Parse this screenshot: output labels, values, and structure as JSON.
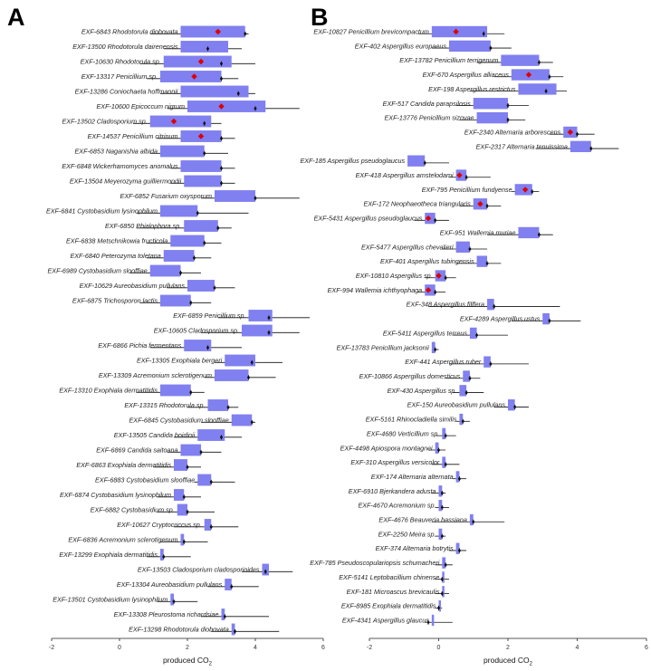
{
  "chart_data": [
    {
      "type": "range-box",
      "panel_label": "A",
      "xlabel": "produced CO",
      "xlabel_subscript": "2",
      "xlim": [
        -2,
        6
      ],
      "xticks": [
        "-2",
        "0",
        "2",
        "4",
        "6"
      ],
      "rows": [
        {
          "label": "EXF-6843 Rhodotorula diobovata",
          "lo": 1.8,
          "hi": 3.7,
          "w0": 0.9,
          "w1": 3.8,
          "m": 3.7,
          "star": 2.9
        },
        {
          "label": "EXF-13500 Rhodotorula dairenensis",
          "lo": 1.8,
          "hi": 3.2,
          "w0": 1.3,
          "w1": 3.6,
          "m": 2.6,
          "star": null
        },
        {
          "label": "EXF-10630 Rhodotorula sp.",
          "lo": 1.3,
          "hi": 3.3,
          "w0": 0.6,
          "w1": 4.0,
          "m": 3.0,
          "star": 2.4
        },
        {
          "label": "EXF-13317 Penicillium sp.",
          "lo": 1.2,
          "hi": 3.0,
          "w0": 0.8,
          "w1": 3.5,
          "m": 3.0,
          "star": 2.2
        },
        {
          "label": "EXF-13286 Coniochaeta hoffmannii",
          "lo": 1.8,
          "hi": 3.8,
          "w0": 1.2,
          "w1": 4.0,
          "m": 3.5,
          "star": null
        },
        {
          "label": "EXF-10600 Epicoccum nigrum",
          "lo": 2.0,
          "hi": 4.3,
          "w0": 1.4,
          "w1": 5.3,
          "m": 4.0,
          "star": 3.0
        },
        {
          "label": "EXF-13502 Cladosporium sp.",
          "lo": 0.9,
          "hi": 2.7,
          "w0": 0.4,
          "w1": 3.0,
          "m": 2.5,
          "star": 1.6
        },
        {
          "label": "EXF-14537 Penicillium citrinum",
          "lo": 1.8,
          "hi": 3.0,
          "w0": 1.1,
          "w1": 3.4,
          "m": 3.0,
          "star": 2.4
        },
        {
          "label": "EXF-6853 Naganishia albida",
          "lo": 1.2,
          "hi": 2.5,
          "w0": 0.9,
          "w1": 3.2,
          "m": 2.5,
          "star": null
        },
        {
          "label": "EXF-6848 Wickerhamomyces anomalus",
          "lo": 1.8,
          "hi": 3.0,
          "w0": 1.5,
          "w1": 3.4,
          "m": 3.0,
          "star": null
        },
        {
          "label": "EXF-13504 Meyerozyma guilliermondii",
          "lo": 1.9,
          "hi": 3.0,
          "w0": 1.5,
          "w1": 3.4,
          "m": 3.0,
          "star": null
        },
        {
          "label": "EXF-6852 Fusarium oxysporum",
          "lo": 2.8,
          "hi": 4.0,
          "w0": 2.4,
          "w1": 5.3,
          "m": 4.0,
          "star": null
        },
        {
          "label": "EXF-6841 Cystobasidium lysinophilum",
          "lo": 1.2,
          "hi": 2.3,
          "w0": 0.5,
          "w1": 3.8,
          "m": 2.3,
          "star": null
        },
        {
          "label": "EXF-6850 Phialophora sp.",
          "lo": 1.9,
          "hi": 2.9,
          "w0": 0.5,
          "w1": 3.3,
          "m": 2.9,
          "star": null
        },
        {
          "label": "EXF-6838 Metschnikowia fructicola",
          "lo": 1.5,
          "hi": 2.5,
          "w0": 0.8,
          "w1": 3.0,
          "m": 2.5,
          "star": null
        },
        {
          "label": "EXF-6840 Peterozyma toletana",
          "lo": 1.3,
          "hi": 2.2,
          "w0": 0.8,
          "w1": 2.7,
          "m": 2.2,
          "star": null
        },
        {
          "label": "EXF-6989 Cystobasidium slooffiae",
          "lo": 0.9,
          "hi": 1.8,
          "w0": 0.3,
          "w1": 2.4,
          "m": 1.8,
          "star": null
        },
        {
          "label": "EXF-10629 Aureobasidium pullulans",
          "lo": 2.0,
          "hi": 2.8,
          "w0": 1.4,
          "w1": 3.4,
          "m": 2.8,
          "star": null
        },
        {
          "label": "EXF-6875 Trichosporon lactis",
          "lo": 1.2,
          "hi": 2.1,
          "w0": 0.6,
          "w1": 2.7,
          "m": 2.1,
          "star": null
        },
        {
          "label": "EXF-6859 Penicillium sp.",
          "lo": 3.8,
          "hi": 4.5,
          "w0": 2.9,
          "w1": 5.6,
          "m": 4.4,
          "star": null
        },
        {
          "label": "EXF-10605 Cladosporium sp.",
          "lo": 3.6,
          "hi": 4.5,
          "w0": 2.4,
          "w1": 5.3,
          "m": 4.4,
          "star": null
        },
        {
          "label": "EXF-6866 Pichia fermentans",
          "lo": 1.9,
          "hi": 2.7,
          "w0": 0.9,
          "w1": 3.6,
          "m": 2.6,
          "star": null
        },
        {
          "label": "EXF-13305 Exophiala bergeri",
          "lo": 3.1,
          "hi": 4.0,
          "w0": 2.8,
          "w1": 4.8,
          "m": 3.9,
          "star": null
        },
        {
          "label": "EXF-13309 Acremonium sclerotigenum",
          "lo": 2.8,
          "hi": 3.8,
          "w0": 2.5,
          "w1": 4.6,
          "m": 3.8,
          "star": null
        },
        {
          "label": "EXF-13310 Exophiala dermatitidis",
          "lo": 1.2,
          "hi": 2.1,
          "w0": 0.5,
          "w1": 2.5,
          "m": 2.1,
          "star": null
        },
        {
          "label": "EXF-13315 Rhodotorula sp.",
          "lo": 2.6,
          "hi": 3.2,
          "w0": 2.0,
          "w1": 3.5,
          "m": 3.2,
          "star": null
        },
        {
          "label": "EXF-6845 Cystobasidium slooffiae",
          "lo": 3.3,
          "hi": 3.9,
          "w0": 2.4,
          "w1": 4.0,
          "m": 3.9,
          "star": null
        },
        {
          "label": "EXF-13505 Candida boidinii",
          "lo": 2.3,
          "hi": 3.1,
          "w0": 1.6,
          "w1": 3.6,
          "m": 3.0,
          "star": null
        },
        {
          "label": "EXF-6869 Candida saitoana",
          "lo": 1.8,
          "hi": 2.4,
          "w0": 1.4,
          "w1": 3.0,
          "m": 2.4,
          "star": null
        },
        {
          "label": "EXF-6863 Exophiala dermatitidis",
          "lo": 1.6,
          "hi": 2.0,
          "w0": 1.0,
          "w1": 2.4,
          "m": 2.0,
          "star": null
        },
        {
          "label": "EXF-6883 Cystobasidium slooffiae",
          "lo": 2.3,
          "hi": 2.7,
          "w0": 2.2,
          "w1": 3.4,
          "m": 2.7,
          "star": null
        },
        {
          "label": "EXF-6874 Cystobasidium lysinophilum",
          "lo": 1.6,
          "hi": 1.9,
          "w0": 1.1,
          "w1": 2.4,
          "m": 1.9,
          "star": null
        },
        {
          "label": "EXF-6882 Cystobasidium sp.",
          "lo": 1.7,
          "hi": 2.0,
          "w0": 1.1,
          "w1": 2.8,
          "m": 2.0,
          "star": null
        },
        {
          "label": "EXF-10627 Cryptococcus sp.",
          "lo": 2.5,
          "hi": 2.7,
          "w0": 1.6,
          "w1": 3.5,
          "m": 2.7,
          "star": null
        },
        {
          "label": "EXF-6836 Acremonium sclerotigenum",
          "lo": 1.8,
          "hi": 1.9,
          "w0": 1.2,
          "w1": 2.6,
          "m": 1.9,
          "star": null
        },
        {
          "label": "EXF-13299 Exophiala dermatitidis",
          "lo": 1.2,
          "hi": 1.3,
          "w0": 0.8,
          "w1": 2.1,
          "m": 1.3,
          "star": null
        },
        {
          "label": "EXF-13503 Cladosporium cladosporioides",
          "lo": 4.2,
          "hi": 4.4,
          "w0": 3.6,
          "w1": 5.1,
          "m": 4.3,
          "star": null
        },
        {
          "label": "EXF-13304 Aureobasidium pullulans",
          "lo": 3.1,
          "hi": 3.3,
          "w0": 2.6,
          "w1": 4.1,
          "m": 3.3,
          "star": null
        },
        {
          "label": "EXF-13501 Cystobasidium lysinophilum",
          "lo": 1.5,
          "hi": 1.6,
          "w0": 1.1,
          "w1": 2.3,
          "m": 1.6,
          "star": null
        },
        {
          "label": "EXF-13308 Pleurostoma richardsiae",
          "lo": 3.0,
          "hi": 3.1,
          "w0": 2.4,
          "w1": 4.4,
          "m": 3.1,
          "star": null
        },
        {
          "label": "EXF-13298 Rhodotorula diobovata",
          "lo": 3.3,
          "hi": 3.4,
          "w0": 2.7,
          "w1": 4.7,
          "m": 3.4,
          "star": null
        }
      ]
    },
    {
      "type": "range-box",
      "panel_label": "B",
      "xlabel": "produced CO",
      "xlabel_subscript": "2",
      "xlim": [
        -2,
        6
      ],
      "xticks": [
        "-2",
        "0",
        "2",
        "4",
        "6"
      ],
      "rows": [
        {
          "label": "EXF-10827 Penicillium brevicompactum",
          "lo": -0.2,
          "hi": 1.4,
          "w0": -0.6,
          "w1": 1.9,
          "m": 1.3,
          "star": 0.5
        },
        {
          "label": "EXF-402 Aspergillus europaeus",
          "lo": 0.3,
          "hi": 1.5,
          "w0": -0.2,
          "w1": 2.1,
          "m": 1.5,
          "star": null
        },
        {
          "label": "EXF-13782 Penicillium terrigenum",
          "lo": 1.8,
          "hi": 2.9,
          "w0": 1.1,
          "w1": 3.3,
          "m": 2.9,
          "star": null
        },
        {
          "label": "EXF-670 Aspergillus alliaceus",
          "lo": 2.1,
          "hi": 3.2,
          "w0": 1.6,
          "w1": 3.6,
          "m": 3.2,
          "star": 2.6
        },
        {
          "label": "EXF-198 Aspergillus restrictus",
          "lo": 2.3,
          "hi": 3.4,
          "w0": 0.9,
          "w1": 3.7,
          "m": 3.1,
          "star": null
        },
        {
          "label": "EXF-517 Candida parapsilosis",
          "lo": 1.0,
          "hi": 2.0,
          "w0": 0.5,
          "w1": 2.6,
          "m": 2.0,
          "star": null
        },
        {
          "label": "EXF-13776 Penicillium sizovae",
          "lo": 1.1,
          "hi": 2.0,
          "w0": 0.6,
          "w1": 2.5,
          "m": 2.0,
          "star": null
        },
        {
          "label": "EXF-2340 Alternaria arborescens",
          "lo": 3.6,
          "hi": 4.0,
          "w0": 3.2,
          "w1": 4.5,
          "m": 4.0,
          "star": 3.8
        },
        {
          "label": "EXF-2317 Alternaria tenuissima",
          "lo": 3.8,
          "hi": 4.4,
          "w0": 2.8,
          "w1": 5.2,
          "m": 4.4,
          "star": null
        },
        {
          "label": "EXF-185 Aspergillus pseudoglaucus",
          "lo": -0.9,
          "hi": -0.4,
          "w0": -0.9,
          "w1": 0.3,
          "m": -0.4,
          "star": null
        },
        {
          "label": "EXF-418 Aspergillus amstelodami",
          "lo": 0.5,
          "hi": 0.8,
          "w0": 0.3,
          "w1": 1.5,
          "m": 0.8,
          "star": 0.6
        },
        {
          "label": "EXF-795 Penicillium fundyense",
          "lo": 2.2,
          "hi": 2.7,
          "w0": 2.1,
          "w1": 2.9,
          "m": 2.7,
          "star": 2.5
        },
        {
          "label": "EXF-172 Neophaeotheca triangularis",
          "lo": 1.0,
          "hi": 1.4,
          "w0": 0.6,
          "w1": 1.8,
          "m": 1.4,
          "star": 1.2
        },
        {
          "label": "EXF-5431 Aspergillus pseudoglaucus",
          "lo": -0.4,
          "hi": -0.1,
          "w0": -0.7,
          "w1": 0.3,
          "m": -0.1,
          "star": -0.3
        },
        {
          "label": "EXF-951 Wallemia muriae",
          "lo": 2.3,
          "hi": 2.9,
          "w0": 1.4,
          "w1": 3.3,
          "m": 2.9,
          "star": null
        },
        {
          "label": "EXF-5477 Aspergillus chevalieri",
          "lo": 0.5,
          "hi": 0.9,
          "w0": 0.1,
          "w1": 1.4,
          "m": 0.9,
          "star": null
        },
        {
          "label": "EXF-401 Aspergillus tubingensis",
          "lo": 1.1,
          "hi": 1.4,
          "w0": 0.5,
          "w1": 1.8,
          "m": 1.4,
          "star": null
        },
        {
          "label": "EXF-10810 Aspergillus sp.",
          "lo": -0.1,
          "hi": 0.2,
          "w0": -0.4,
          "w1": 0.5,
          "m": 0.2,
          "star": 0.0
        },
        {
          "label": "EXF-994 Wallemia ichthyophaga",
          "lo": -0.4,
          "hi": -0.1,
          "w0": -0.6,
          "w1": 0.2,
          "m": -0.1,
          "star": -0.3
        },
        {
          "label": "EXF-348 Aspergillus fillfera",
          "lo": 1.4,
          "hi": 1.6,
          "w0": -0.3,
          "w1": 3.5,
          "m": 1.6,
          "star": null
        },
        {
          "label": "EXF-4289 Aspergillus ustus",
          "lo": 3.0,
          "hi": 3.2,
          "w0": 2.1,
          "w1": 4.1,
          "m": 3.2,
          "star": null
        },
        {
          "label": "EXF-5411 Aspergillus terreus",
          "lo": 0.9,
          "hi": 1.1,
          "w0": 0.4,
          "w1": 2.0,
          "m": 1.1,
          "star": null
        },
        {
          "label": "EXF-13783 Penicillium jacksonii",
          "lo": -0.2,
          "hi": -0.1,
          "w0": -0.2,
          "w1": 0.0,
          "m": -0.1,
          "star": null
        },
        {
          "label": "EXF-441 Aspergillus ruber",
          "lo": 1.3,
          "hi": 1.5,
          "w0": 0.3,
          "w1": 2.6,
          "m": 1.5,
          "star": null
        },
        {
          "label": "EXF-10866 Aspergillus domesticus",
          "lo": 0.7,
          "hi": 0.9,
          "w0": 0.2,
          "w1": 1.2,
          "m": 0.9,
          "star": null
        },
        {
          "label": "EXF-430 Aspergillus sp.",
          "lo": 0.6,
          "hi": 0.8,
          "w0": 0.4,
          "w1": 1.3,
          "m": 0.8,
          "star": null
        },
        {
          "label": "EXF-150 Aureobasidium pullulans",
          "lo": 2.0,
          "hi": 2.2,
          "w0": 1.6,
          "w1": 2.6,
          "m": 2.2,
          "star": null
        },
        {
          "label": "EXF-5161 Rhinocladiella similis",
          "lo": 0.6,
          "hi": 0.7,
          "w0": 0.5,
          "w1": 0.9,
          "m": 0.7,
          "star": null
        },
        {
          "label": "EXF-4680 Verticillium sp.",
          "lo": 0.1,
          "hi": 0.2,
          "w0": -0.1,
          "w1": 0.5,
          "m": 0.2,
          "star": null
        },
        {
          "label": "EXF-4498 Apiospora montagnei",
          "lo": -0.1,
          "hi": 0.0,
          "w0": -0.3,
          "w1": 0.2,
          "m": 0.0,
          "star": null
        },
        {
          "label": "EXF-310 Aspergillus versicolor",
          "lo": 0.1,
          "hi": 0.2,
          "w0": -0.2,
          "w1": 0.6,
          "m": 0.2,
          "star": null
        },
        {
          "label": "EXF-174 Alternaria alternata",
          "lo": 0.5,
          "hi": 0.6,
          "w0": 0.4,
          "w1": 0.8,
          "m": 0.6,
          "star": null
        },
        {
          "label": "EXF-6910 Bjerkandera adusta",
          "lo": 0.0,
          "hi": 0.1,
          "w0": -0.2,
          "w1": 0.2,
          "m": 0.1,
          "star": null
        },
        {
          "label": "EXF-4670 Acremonium sp.",
          "lo": 0.0,
          "hi": 0.1,
          "w0": -0.1,
          "w1": 0.3,
          "m": 0.1,
          "star": null
        },
        {
          "label": "EXF-4676 Beauveria bassiana",
          "lo": 0.9,
          "hi": 1.0,
          "w0": -0.2,
          "w1": 1.9,
          "m": 1.0,
          "star": null
        },
        {
          "label": "EXF-2250 Meira sp.",
          "lo": 0.0,
          "hi": 0.1,
          "w0": -0.1,
          "w1": 0.2,
          "m": 0.1,
          "star": null
        },
        {
          "label": "EXF-374 Alternaria botrytis",
          "lo": 0.5,
          "hi": 0.6,
          "w0": 0.3,
          "w1": 0.8,
          "m": 0.6,
          "star": null
        },
        {
          "label": "EXF-785 Pseudoscopulariopsis schumacheri",
          "lo": 0.1,
          "hi": 0.2,
          "w0": -0.1,
          "w1": 0.4,
          "m": 0.2,
          "star": null
        },
        {
          "label": "EXF-5141 Leptobacillium chinense",
          "lo": 0.1,
          "hi": 0.1,
          "w0": -0.1,
          "w1": 0.3,
          "m": 0.1,
          "star": null
        },
        {
          "label": "EXF-181 Microascus brevicaulis",
          "lo": 0.1,
          "hi": 0.1,
          "w0": -0.1,
          "w1": 0.3,
          "m": 0.1,
          "star": null
        },
        {
          "label": "EXF-8985 Exophiala dermatitidis",
          "lo": 0.0,
          "hi": 0.0,
          "w0": -0.1,
          "w1": 0.1,
          "m": 0.0,
          "star": null
        },
        {
          "label": "EXF-4341 Aspergillus glaucus",
          "lo": -0.2,
          "hi": -0.2,
          "w0": -0.4,
          "w1": 0.4,
          "m": -0.3,
          "star": null
        }
      ]
    }
  ],
  "colors": {
    "box": "#8080f0",
    "star": "#dd0000",
    "marker": "#111111",
    "whisker": "#111111",
    "axis": "#222222"
  }
}
